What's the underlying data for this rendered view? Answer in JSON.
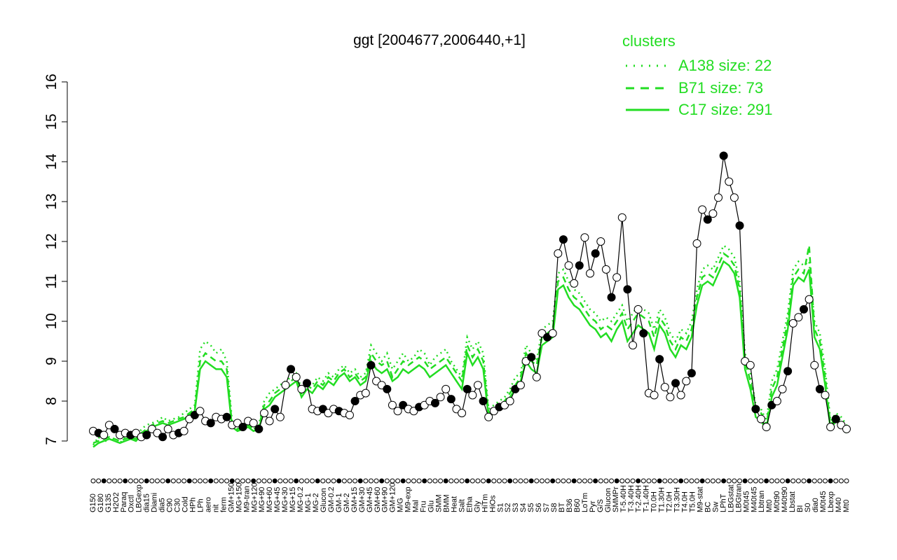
{
  "chart_data": {
    "type": "line",
    "title": "ggt [2004677,2006440,+1]",
    "xlabel": "",
    "ylabel": "",
    "ylim": [
      7,
      16
    ],
    "y_ticks": [
      "7",
      "8",
      "9",
      "10",
      "11",
      "12",
      "13",
      "14",
      "15",
      "16"
    ],
    "x_tick_labels": [
      "G150",
      "G180",
      "G135",
      "H2O2",
      "Paraq",
      "Oxctl",
      "LBGexp",
      "dia15",
      "Diami",
      "dia5",
      "C90",
      "C30",
      "Cold",
      "HPh",
      "LPh",
      "aero",
      "nit",
      "ferm",
      "GM+150",
      "MG+150",
      "M9-tran",
      "MG+120",
      "MG+90",
      "MG+60",
      "MG+45",
      "MG+30",
      "MG+15",
      "MG-0.2",
      "MG-1",
      "MG-2",
      "Glucon",
      "GM-0.2",
      "GM-1",
      "GM-2",
      "GM+15",
      "GM+30",
      "GM+45",
      "GM+60",
      "GM+90",
      "GM+120",
      "M/G",
      "M9-exp",
      "Mal",
      "Fru",
      "Glu",
      "SMM",
      "BMM",
      "Heat",
      "Salt",
      "Etha",
      "Gly",
      "HiTm",
      "HiOs",
      "S1",
      "S2",
      "S3",
      "S4",
      "S5",
      "S6",
      "S7",
      "S8",
      "BT",
      "B36",
      "B60",
      "LoTm",
      "Pyr",
      "G/S",
      "Glucon",
      "SMMPr",
      "T-5.40H",
      "T-3.40H",
      "T-2.40H",
      "T-1.40H",
      "T0.0H",
      "T1.30H",
      "T2.0H",
      "T3.30H",
      "T4.0H",
      "T5.0H",
      "M9-stat",
      "BC",
      "Sw",
      "LPhT",
      "LBGstat",
      "LBGtran",
      "M0t45",
      "M40t45",
      "Lbtran",
      "Mt0",
      "M0t90",
      "M40t90",
      "Lbstat",
      "BI",
      "S0",
      "dia0",
      "M0t45",
      "Lbexp",
      "M40",
      "Mt0"
    ],
    "points": [
      {
        "x": 1,
        "y": 7.25
      },
      {
        "x": 2,
        "y": 7.2
      },
      {
        "x": 3,
        "y": 7.15
      },
      {
        "x": 4,
        "y": 7.4
      },
      {
        "x": 5,
        "y": 7.3
      },
      {
        "x": 6,
        "y": 7.15
      },
      {
        "x": 7,
        "y": 7.2
      },
      {
        "x": 8,
        "y": 7.15
      },
      {
        "x": 9,
        "y": 7.2
      },
      {
        "x": 10,
        "y": 7.1
      },
      {
        "x": 11,
        "y": 7.15
      },
      {
        "x": 12,
        "y": 7.3
      },
      {
        "x": 13,
        "y": 7.2
      },
      {
        "x": 14,
        "y": 7.1
      },
      {
        "x": 15,
        "y": 7.3
      },
      {
        "x": 16,
        "y": 7.15
      },
      {
        "x": 17,
        "y": 7.2
      },
      {
        "x": 18,
        "y": 7.25
      },
      {
        "x": 19,
        "y": 7.55
      },
      {
        "x": 20,
        "y": 7.65
      },
      {
        "x": 21,
        "y": 7.75
      },
      {
        "x": 22,
        "y": 7.5
      },
      {
        "x": 23,
        "y": 7.45
      },
      {
        "x": 24,
        "y": 7.6
      },
      {
        "x": 25,
        "y": 7.55
      },
      {
        "x": 26,
        "y": 7.6
      },
      {
        "x": 27,
        "y": 7.4
      },
      {
        "x": 28,
        "y": 7.45
      },
      {
        "x": 29,
        "y": 7.35
      },
      {
        "x": 30,
        "y": 7.5
      },
      {
        "x": 31,
        "y": 7.45
      },
      {
        "x": 32,
        "y": 7.3
      },
      {
        "x": 33,
        "y": 7.7
      },
      {
        "x": 34,
        "y": 7.5
      },
      {
        "x": 35,
        "y": 7.8
      },
      {
        "x": 36,
        "y": 7.6
      },
      {
        "x": 37,
        "y": 8.4
      },
      {
        "x": 38,
        "y": 8.8
      },
      {
        "x": 39,
        "y": 8.6
      },
      {
        "x": 40,
        "y": 8.3
      },
      {
        "x": 41,
        "y": 8.45
      },
      {
        "x": 42,
        "y": 7.8
      },
      {
        "x": 43,
        "y": 7.75
      },
      {
        "x": 44,
        "y": 7.8
      },
      {
        "x": 45,
        "y": 7.7
      },
      {
        "x": 46,
        "y": 7.8
      },
      {
        "x": 47,
        "y": 7.75
      },
      {
        "x": 48,
        "y": 7.7
      },
      {
        "x": 49,
        "y": 7.65
      },
      {
        "x": 50,
        "y": 8.0
      },
      {
        "x": 51,
        "y": 8.15
      },
      {
        "x": 52,
        "y": 8.2
      },
      {
        "x": 53,
        "y": 8.9
      },
      {
        "x": 54,
        "y": 8.5
      },
      {
        "x": 55,
        "y": 8.4
      },
      {
        "x": 56,
        "y": 8.3
      },
      {
        "x": 57,
        "y": 7.9
      },
      {
        "x": 58,
        "y": 7.75
      },
      {
        "x": 59,
        "y": 7.9
      },
      {
        "x": 60,
        "y": 7.8
      },
      {
        "x": 61,
        "y": 7.75
      },
      {
        "x": 62,
        "y": 7.85
      },
      {
        "x": 63,
        "y": 7.9
      },
      {
        "x": 64,
        "y": 8.0
      },
      {
        "x": 65,
        "y": 7.95
      },
      {
        "x": 66,
        "y": 8.1
      },
      {
        "x": 67,
        "y": 8.3
      },
      {
        "x": 68,
        "y": 8.05
      },
      {
        "x": 69,
        "y": 7.8
      },
      {
        "x": 70,
        "y": 7.7
      },
      {
        "x": 71,
        "y": 8.3
      },
      {
        "x": 72,
        "y": 8.15
      },
      {
        "x": 73,
        "y": 8.4
      },
      {
        "x": 74,
        "y": 8.0
      },
      {
        "x": 75,
        "y": 7.6
      },
      {
        "x": 76,
        "y": 7.75
      },
      {
        "x": 77,
        "y": 7.85
      },
      {
        "x": 78,
        "y": 7.9
      },
      {
        "x": 79,
        "y": 8.0
      },
      {
        "x": 80,
        "y": 8.3
      },
      {
        "x": 81,
        "y": 8.4
      },
      {
        "x": 82,
        "y": 9.0
      },
      {
        "x": 83,
        "y": 9.1
      },
      {
        "x": 84,
        "y": 8.6
      },
      {
        "x": 85,
        "y": 9.7
      },
      {
        "x": 86,
        "y": 9.6
      },
      {
        "x": 87,
        "y": 9.7
      },
      {
        "x": 88,
        "y": 11.7
      },
      {
        "x": 89,
        "y": 12.05
      },
      {
        "x": 90,
        "y": 11.4
      },
      {
        "x": 91,
        "y": 10.95
      },
      {
        "x": 92,
        "y": 11.4
      },
      {
        "x": 93,
        "y": 12.1
      },
      {
        "x": 94,
        "y": 11.2
      },
      {
        "x": 95,
        "y": 11.7
      },
      {
        "x": 96,
        "y": 12.0
      },
      {
        "x": 97,
        "y": 11.3
      },
      {
        "x": 98,
        "y": 10.6
      },
      {
        "x": 99,
        "y": 11.1
      },
      {
        "x": 100,
        "y": 12.6
      },
      {
        "x": 101,
        "y": 10.8
      },
      {
        "x": 102,
        "y": 9.4
      },
      {
        "x": 103,
        "y": 10.3
      },
      {
        "x": 104,
        "y": 9.7
      },
      {
        "x": 105,
        "y": 8.2
      },
      {
        "x": 106,
        "y": 8.15
      },
      {
        "x": 107,
        "y": 9.05
      },
      {
        "x": 108,
        "y": 8.35
      },
      {
        "x": 109,
        "y": 8.1
      },
      {
        "x": 110,
        "y": 8.45
      },
      {
        "x": 111,
        "y": 8.15
      },
      {
        "x": 112,
        "y": 8.5
      },
      {
        "x": 113,
        "y": 8.7
      },
      {
        "x": 114,
        "y": 11.95
      },
      {
        "x": 115,
        "y": 12.8
      },
      {
        "x": 116,
        "y": 12.55
      },
      {
        "x": 117,
        "y": 12.7
      },
      {
        "x": 118,
        "y": 13.1
      },
      {
        "x": 119,
        "y": 14.15
      },
      {
        "x": 120,
        "y": 13.5
      },
      {
        "x": 121,
        "y": 13.1
      },
      {
        "x": 122,
        "y": 12.4
      },
      {
        "x": 123,
        "y": 9.0
      },
      {
        "x": 124,
        "y": 8.9
      },
      {
        "x": 125,
        "y": 7.8
      },
      {
        "x": 126,
        "y": 7.55
      },
      {
        "x": 127,
        "y": 7.35
      },
      {
        "x": 128,
        "y": 7.9
      },
      {
        "x": 129,
        "y": 8.0
      },
      {
        "x": 130,
        "y": 8.3
      },
      {
        "x": 131,
        "y": 8.75
      },
      {
        "x": 132,
        "y": 9.95
      },
      {
        "x": 133,
        "y": 10.1
      },
      {
        "x": 134,
        "y": 10.3
      },
      {
        "x": 135,
        "y": 10.55
      },
      {
        "x": 136,
        "y": 8.9
      },
      {
        "x": 137,
        "y": 8.3
      },
      {
        "x": 138,
        "y": 8.15
      },
      {
        "x": 139,
        "y": 7.35
      },
      {
        "x": 140,
        "y": 7.55
      },
      {
        "x": 141,
        "y": 7.4
      },
      {
        "x": 142,
        "y": 7.3
      }
    ],
    "x_range": [
      1,
      142
    ],
    "series": [
      {
        "name": "A138 size: 22",
        "style": "dotted",
        "values": [
          6.9,
          7.1,
          6.95,
          7.1,
          7.0,
          6.95,
          7.1,
          7.2,
          7.0,
          7.3,
          7.4,
          7.45,
          7.5,
          7.6,
          7.5,
          7.55,
          7.6,
          7.7,
          7.8,
          7.9,
          9.3,
          9.5,
          9.4,
          9.2,
          9.3,
          9.0,
          7.5,
          7.3,
          7.4,
          7.5,
          7.3,
          7.4,
          8.0,
          8.2,
          8.3,
          8.4,
          8.5,
          8.6,
          8.7,
          8.3,
          8.5,
          8.4,
          8.6,
          8.5,
          8.7,
          8.6,
          8.8,
          8.9,
          8.7,
          8.8,
          8.6,
          8.7,
          9.4,
          9.2,
          9.0,
          9.2,
          8.8,
          9.0,
          9.2,
          9.0,
          9.1,
          9.3,
          9.2,
          8.9,
          9.1,
          9.2,
          9.3,
          9.0,
          8.8,
          8.6,
          9.6,
          9.3,
          9.5,
          9.2,
          7.8,
          7.9,
          8.0,
          8.1,
          8.3,
          8.6,
          8.7,
          9.4,
          9.2,
          9.0,
          9.8,
          9.9,
          10.0,
          11.2,
          11.3,
          11.0,
          10.8,
          10.7,
          10.5,
          10.3,
          10.2,
          10.0,
          10.1,
          10.0,
          10.2,
          10.4,
          10.0,
          10.2,
          10.4,
          10.3,
          10.2,
          9.8,
          10.3,
          10.1,
          9.7,
          9.5,
          9.8,
          9.7,
          10.0,
          10.8,
          11.3,
          11.4,
          11.3,
          11.6,
          11.9,
          11.8,
          11.6,
          11.0,
          9.2,
          8.7,
          7.9,
          7.8,
          7.5,
          8.5,
          8.8,
          9.5,
          10.2,
          11.3,
          11.5,
          11.4,
          11.5,
          10.0,
          9.7,
          8.8,
          7.5,
          7.7,
          7.6,
          7.4
        ]
      },
      {
        "name": "B71 size: 73",
        "style": "dashed",
        "values": [
          6.95,
          7.0,
          7.05,
          7.1,
          7.05,
          7.0,
          7.05,
          7.1,
          7.05,
          7.2,
          7.3,
          7.4,
          7.45,
          7.5,
          7.45,
          7.5,
          7.55,
          7.6,
          7.7,
          7.8,
          9.0,
          9.2,
          9.1,
          9.0,
          9.0,
          8.8,
          7.4,
          7.3,
          7.35,
          7.4,
          7.3,
          7.35,
          7.9,
          8.0,
          8.2,
          8.3,
          8.4,
          8.5,
          8.6,
          8.2,
          8.4,
          8.3,
          8.5,
          8.4,
          8.6,
          8.5,
          8.7,
          8.8,
          8.6,
          8.7,
          8.5,
          8.6,
          9.2,
          9.0,
          8.9,
          9.0,
          8.6,
          8.8,
          9.0,
          8.9,
          9.0,
          9.1,
          9.0,
          8.8,
          8.9,
          9.0,
          9.1,
          8.9,
          8.7,
          8.5,
          9.4,
          9.1,
          9.3,
          9.0,
          7.7,
          7.8,
          7.9,
          8.0,
          8.2,
          8.4,
          8.6,
          9.2,
          9.0,
          8.9,
          9.6,
          9.7,
          9.8,
          11.0,
          11.1,
          10.8,
          10.6,
          10.5,
          10.3,
          10.1,
          10.0,
          9.8,
          9.9,
          9.8,
          10.0,
          10.2,
          9.8,
          10.0,
          10.2,
          10.1,
          10.0,
          9.6,
          10.1,
          9.9,
          9.5,
          9.3,
          9.6,
          9.5,
          9.8,
          10.6,
          11.1,
          11.2,
          11.1,
          11.4,
          11.7,
          11.6,
          11.4,
          10.8,
          9.0,
          8.5,
          7.8,
          7.7,
          7.4,
          8.3,
          8.6,
          9.3,
          10.0,
          11.1,
          11.3,
          11.2,
          11.9,
          9.8,
          9.5,
          8.6,
          7.4,
          7.6,
          7.5,
          7.3
        ]
      },
      {
        "name": "C17 size: 291",
        "style": "solid",
        "values": [
          6.85,
          6.95,
          7.0,
          7.05,
          7.0,
          6.95,
          7.0,
          7.05,
          7.0,
          7.15,
          7.25,
          7.35,
          7.4,
          7.45,
          7.4,
          7.45,
          7.5,
          7.55,
          7.65,
          7.75,
          8.8,
          9.0,
          8.9,
          8.8,
          8.8,
          8.6,
          7.35,
          7.25,
          7.3,
          7.35,
          7.25,
          7.3,
          7.8,
          7.9,
          8.1,
          8.2,
          8.3,
          8.4,
          8.5,
          8.1,
          8.3,
          8.2,
          8.4,
          8.3,
          8.5,
          8.4,
          8.6,
          8.7,
          8.5,
          8.6,
          8.4,
          8.5,
          9.0,
          8.8,
          8.7,
          8.8,
          8.5,
          8.6,
          8.8,
          8.7,
          8.8,
          8.9,
          8.8,
          8.6,
          8.7,
          8.8,
          8.9,
          8.7,
          8.5,
          8.3,
          9.2,
          8.9,
          9.1,
          8.8,
          7.6,
          7.7,
          7.8,
          7.9,
          8.1,
          8.3,
          8.5,
          9.0,
          8.8,
          8.7,
          9.4,
          9.5,
          9.6,
          10.8,
          10.9,
          10.6,
          10.4,
          10.3,
          10.1,
          9.9,
          9.8,
          9.6,
          9.7,
          9.5,
          9.8,
          10.0,
          9.5,
          9.7,
          9.9,
          9.8,
          9.7,
          9.3,
          9.9,
          9.7,
          9.3,
          9.1,
          9.4,
          9.3,
          9.6,
          10.4,
          10.9,
          11.0,
          10.9,
          11.2,
          11.5,
          11.4,
          11.2,
          10.6,
          8.8,
          8.3,
          7.6,
          7.5,
          7.3,
          8.1,
          8.4,
          9.1,
          9.8,
          10.9,
          11.1,
          11.0,
          11.3,
          9.6,
          9.3,
          8.4,
          7.3,
          7.5,
          7.4,
          7.2
        ]
      }
    ]
  },
  "legend": {
    "title": "clusters",
    "items": [
      "A138 size: 22",
      "B71 size: 73",
      "C17 size: 291"
    ],
    "color": "#22dd22",
    "placement": "top-right"
  }
}
